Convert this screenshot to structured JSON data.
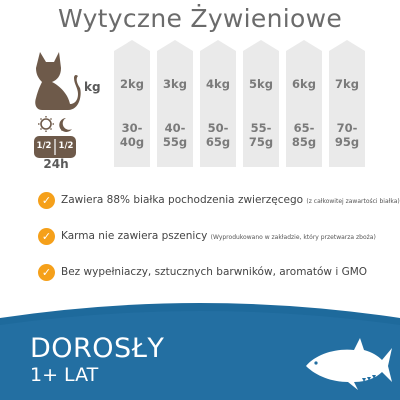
{
  "title": "Wytyczne Żywieniowe",
  "kg_label": "kg",
  "day_label": "24h",
  "day_split": [
    "1/2",
    "1/2"
  ],
  "columns": [
    {
      "weight": "2kg",
      "grams": [
        "30-",
        "40g"
      ]
    },
    {
      "weight": "3kg",
      "grams": [
        "40-",
        "55g"
      ]
    },
    {
      "weight": "4kg",
      "grams": [
        "50-",
        "65g"
      ]
    },
    {
      "weight": "5kg",
      "grams": [
        "55-",
        "75g"
      ]
    },
    {
      "weight": "6kg",
      "grams": [
        "65-",
        "85g"
      ]
    },
    {
      "weight": "7kg",
      "grams": [
        "70-",
        "95g"
      ]
    }
  ],
  "features": [
    {
      "text": "Zawiera 88% białka pochodzenia zwierzęcego",
      "note": "(z całkowitej zawartości białka)"
    },
    {
      "text": "Karma nie zawiera pszenicy",
      "note": "(Wyprodukowano w zakładzie, który przetwarza zboża)"
    },
    {
      "text": "Bez wypełniaczy, sztucznych barwników, aromatów i GMO",
      "note": ""
    }
  ],
  "banner": {
    "line1": "DOROSŁY",
    "line2": "1+ LAT"
  },
  "colors": {
    "accent": "#f5a01a",
    "banner_blue": "#1e6a9c",
    "banner_dark": "#174f7a",
    "column_bg": "#eaeaea",
    "icon_brown": "#6e5a4a"
  }
}
